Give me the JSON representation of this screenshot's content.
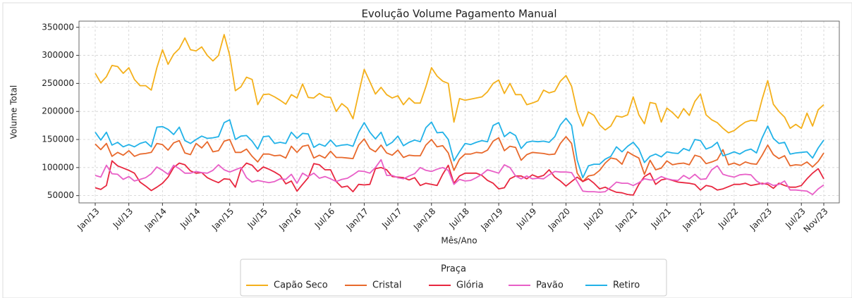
{
  "chart_data": {
    "type": "line",
    "title": "Evolução Volume Pagamento Manual",
    "xlabel": "Mês/Ano",
    "ylabel": "Volume Total",
    "categories": [
      "Jan/13",
      null,
      null,
      null,
      null,
      null,
      "Jul/13",
      null,
      null,
      null,
      null,
      null,
      "Jan/14",
      null,
      null,
      null,
      null,
      null,
      "Jul/14",
      null,
      null,
      null,
      null,
      null,
      "Jan/15",
      null,
      null,
      null,
      null,
      null,
      "Jul/15",
      null,
      null,
      null,
      null,
      null,
      "Jan/16",
      null,
      null,
      null,
      null,
      null,
      "Jul/16",
      null,
      null,
      null,
      null,
      null,
      "Jan/17",
      null,
      null,
      null,
      null,
      null,
      "Jul/17",
      null,
      null,
      null,
      null,
      null,
      "Jan/18",
      null,
      null,
      null,
      null,
      null,
      "Jul/18",
      null,
      null,
      null,
      null,
      null,
      "Jan/19",
      null,
      null,
      null,
      null,
      null,
      "Jul/19",
      null,
      null,
      null,
      null,
      null,
      "Jan/20",
      null,
      null,
      null,
      null,
      null,
      "Jul/20",
      null,
      null,
      null,
      null,
      null,
      "Jan/21",
      null,
      null,
      null,
      null,
      null,
      "Jul/21",
      null,
      null,
      null,
      null,
      null,
      "Jan/22",
      null,
      null,
      null,
      null,
      null,
      "Jul/22",
      null,
      null,
      null,
      null,
      null,
      "Jan/23",
      null,
      null,
      null,
      null,
      null,
      "Jul/23",
      null,
      null,
      null,
      "Nov/23"
    ],
    "series": [
      {
        "name": "Capão Seco",
        "color": "#f4b01b",
        "values": [
          268000,
          251000,
          262000,
          282000,
          280000,
          268000,
          278000,
          257000,
          246000,
          246000,
          238000,
          278000,
          310000,
          284000,
          302000,
          312000,
          331000,
          310000,
          308000,
          315000,
          300000,
          290000,
          300000,
          337000,
          300000,
          237000,
          244000,
          261000,
          257000,
          212000,
          230000,
          231000,
          226000,
          220000,
          213000,
          230000,
          224000,
          249000,
          225000,
          224000,
          232000,
          226000,
          225000,
          200000,
          214000,
          206000,
          187000,
          232000,
          275000,
          253000,
          231000,
          243000,
          230000,
          224000,
          228000,
          212000,
          224000,
          215000,
          215000,
          244000,
          278000,
          263000,
          254000,
          250000,
          181000,
          223000,
          220000,
          222000,
          224000,
          226000,
          235000,
          250000,
          256000,
          232000,
          250000,
          230000,
          230000,
          212000,
          215000,
          219000,
          238000,
          233000,
          236000,
          254000,
          264000,
          245000,
          200000,
          174000,
          199000,
          193000,
          176000,
          167000,
          174000,
          192000,
          190000,
          194000,
          226000,
          194000,
          178000,
          216000,
          214000,
          181000,
          206000,
          198000,
          188000,
          205000,
          193000,
          218000,
          231000,
          194000,
          185000,
          180000,
          170000,
          162000,
          166000,
          174000,
          181000,
          184000,
          183000,
          222000,
          255000,
          213000,
          200000,
          190000,
          170000,
          177000,
          170000,
          197000,
          174000,
          203000,
          212000
        ]
      },
      {
        "name": "Cristal",
        "color": "#e8692c",
        "values": [
          142000,
          132000,
          143000,
          120000,
          127000,
          122000,
          130000,
          120000,
          124000,
          125000,
          127000,
          143000,
          141000,
          131000,
          144000,
          148000,
          126000,
          123000,
          143000,
          135000,
          146000,
          128000,
          130000,
          147000,
          150000,
          127000,
          127000,
          133000,
          120000,
          110000,
          124000,
          124000,
          121000,
          122000,
          117000,
          138000,
          127000,
          138000,
          140000,
          117000,
          122000,
          117000,
          129000,
          118000,
          118000,
          117000,
          116000,
          140000,
          151000,
          134000,
          128000,
          140000,
          126000,
          122000,
          131000,
          118000,
          122000,
          121000,
          121000,
          140000,
          150000,
          137000,
          139000,
          126000,
          95000,
          115000,
          124000,
          124000,
          127000,
          126000,
          131000,
          147000,
          153000,
          130000,
          138000,
          136000,
          113000,
          123000,
          127000,
          126000,
          125000,
          123000,
          124000,
          143000,
          155000,
          143000,
          90000,
          75000,
          85000,
          87000,
          95000,
          108000,
          117000,
          115000,
          106000,
          128000,
          122000,
          117000,
          88000,
          113000,
          96000,
          99000,
          112000,
          105000,
          107000,
          108000,
          105000,
          122000,
          119000,
          107000,
          110000,
          114000,
          132000,
          105000,
          108000,
          104000,
          110000,
          107000,
          106000,
          122000,
          140000,
          123000,
          116000,
          121000,
          103000,
          105000,
          104000,
          110000,
          101000,
          111000,
          126000
        ]
      },
      {
        "name": "Glória",
        "color": "#e8273f",
        "values": [
          64000,
          61000,
          68000,
          112000,
          103000,
          99000,
          95000,
          90000,
          74000,
          67000,
          59000,
          65000,
          72000,
          83000,
          100000,
          108000,
          105000,
          94000,
          90000,
          91000,
          82000,
          77000,
          73000,
          80000,
          79000,
          65000,
          97000,
          108000,
          104000,
          93000,
          101000,
          97000,
          92000,
          86000,
          71000,
          76000,
          58000,
          70000,
          82000,
          107000,
          105000,
          96000,
          96000,
          75000,
          65000,
          67000,
          57000,
          70000,
          69000,
          70000,
          98000,
          100000,
          96000,
          84000,
          83000,
          82000,
          78000,
          82000,
          68000,
          72000,
          70000,
          68000,
          88000,
          104000,
          72000,
          85000,
          90000,
          90000,
          90000,
          86000,
          77000,
          72000,
          62000,
          64000,
          80000,
          85000,
          85000,
          80000,
          87000,
          83000,
          86000,
          96000,
          83000,
          76000,
          67000,
          75000,
          83000,
          75000,
          80000,
          72000,
          62000,
          65000,
          60000,
          56000,
          55000,
          52000,
          51000,
          70000,
          84000,
          90000,
          70000,
          78000,
          80000,
          77000,
          74000,
          73000,
          72000,
          70000,
          60000,
          68000,
          66000,
          60000,
          62000,
          66000,
          70000,
          70000,
          72000,
          68000,
          70000,
          72000,
          70000,
          63000,
          72000,
          68000,
          65000,
          65000,
          68000,
          80000,
          90000,
          98000,
          80000
        ]
      },
      {
        "name": "Pavão",
        "color": "#e85fc7",
        "values": [
          86000,
          83000,
          104000,
          89000,
          88000,
          79000,
          84000,
          76000,
          79000,
          82000,
          89000,
          101000,
          95000,
          88000,
          104000,
          98000,
          90000,
          90000,
          93000,
          91000,
          90000,
          95000,
          105000,
          96000,
          92000,
          96000,
          100000,
          82000,
          74000,
          77000,
          75000,
          73000,
          75000,
          80000,
          79000,
          88000,
          72000,
          90000,
          84000,
          90000,
          81000,
          84000,
          80000,
          75000,
          79000,
          81000,
          87000,
          94000,
          93000,
          90000,
          100000,
          114000,
          86000,
          86000,
          82000,
          80000,
          85000,
          89000,
          100000,
          95000,
          93000,
          97000,
          100000,
          95000,
          70000,
          79000,
          76000,
          77000,
          82000,
          88000,
          96000,
          93000,
          90000,
          105000,
          100000,
          85000,
          80000,
          85000,
          80000,
          81000,
          80000,
          87000,
          93000,
          92000,
          92000,
          91000,
          75000,
          58000,
          57000,
          57000,
          56000,
          57000,
          65000,
          74000,
          72000,
          72000,
          68000,
          73000,
          80000,
          78000,
          78000,
          84000,
          80000,
          78000,
          77000,
          86000,
          80000,
          88000,
          79000,
          80000,
          96000,
          103000,
          88000,
          85000,
          83000,
          87000,
          88000,
          87000,
          76000,
          70000,
          73000,
          68000,
          70000,
          76000,
          60000,
          60000,
          59000,
          58000,
          52000,
          62000,
          69000
        ]
      },
      {
        "name": "Retiro",
        "color": "#22b2e8",
        "values": [
          163000,
          149000,
          163000,
          140000,
          145000,
          137000,
          141000,
          137000,
          143000,
          146000,
          137000,
          172000,
          173000,
          168000,
          159000,
          172000,
          148000,
          143000,
          150000,
          156000,
          152000,
          153000,
          155000,
          180000,
          185000,
          150000,
          156000,
          157000,
          147000,
          133000,
          155000,
          156000,
          143000,
          145000,
          143000,
          163000,
          152000,
          161000,
          160000,
          136000,
          142000,
          138000,
          149000,
          138000,
          140000,
          141000,
          138000,
          163000,
          180000,
          163000,
          151000,
          163000,
          139000,
          145000,
          156000,
          139000,
          145000,
          149000,
          146000,
          171000,
          181000,
          162000,
          163000,
          150000,
          112000,
          128000,
          143000,
          141000,
          145000,
          148000,
          146000,
          175000,
          180000,
          155000,
          163000,
          157000,
          134000,
          145000,
          147000,
          146000,
          147000,
          145000,
          155000,
          176000,
          188000,
          175000,
          113000,
          82000,
          103000,
          106000,
          106000,
          115000,
          120000,
          137000,
          128000,
          138000,
          145000,
          133000,
          109000,
          120000,
          124000,
          119000,
          128000,
          126000,
          125000,
          134000,
          130000,
          150000,
          148000,
          133000,
          137000,
          145000,
          121000,
          124000,
          128000,
          124000,
          130000,
          133000,
          126000,
          153000,
          174000,
          152000,
          143000,
          145000,
          124000,
          126000,
          127000,
          128000,
          117000,
          135000,
          149000
        ]
      }
    ],
    "ylim": [
      37000,
      361000
    ],
    "yticks": [
      50000,
      100000,
      150000,
      200000,
      250000,
      300000,
      350000
    ],
    "grid": true,
    "legend": {
      "title": "Praça",
      "position": "bottom"
    }
  }
}
